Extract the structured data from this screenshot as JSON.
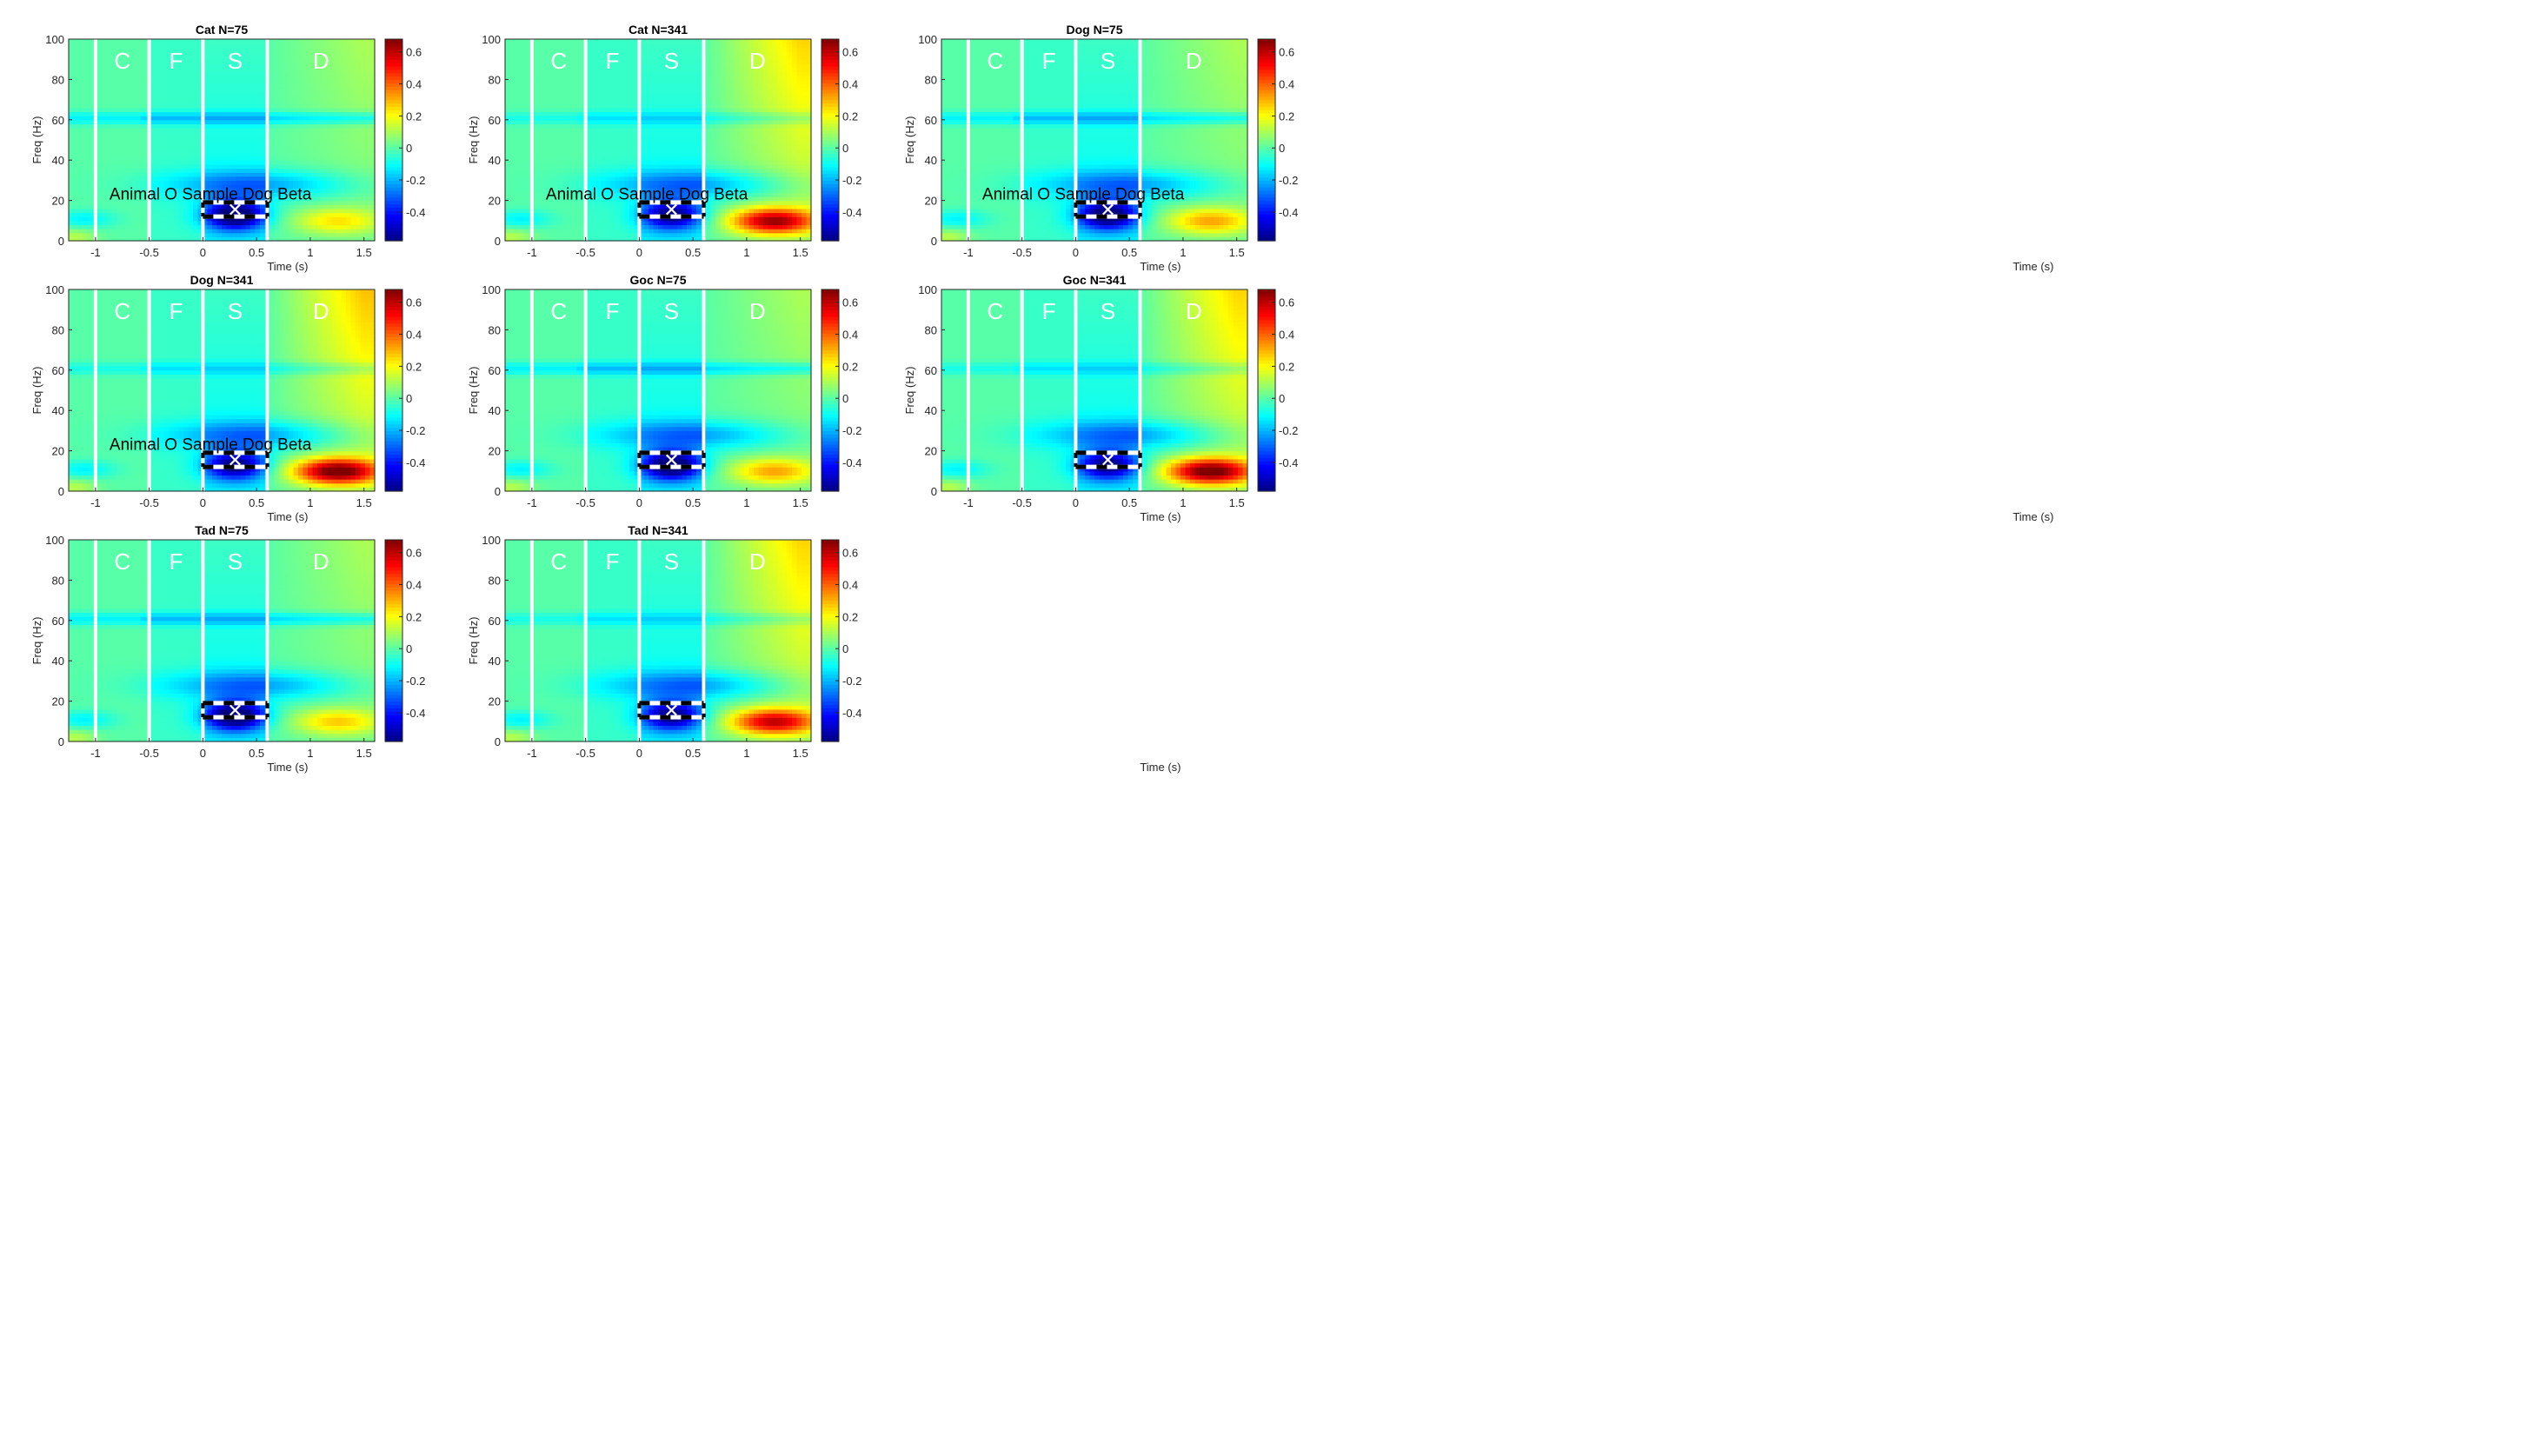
{
  "figure": {
    "xlabel": "Time (s)",
    "ylabel": "Freq (Hz)",
    "x_ticks": [
      -1,
      -0.5,
      0,
      0.5,
      1,
      1.5
    ],
    "y_ticks": [
      0,
      20,
      40,
      60,
      80,
      100
    ],
    "colorbar_ticks": [
      -0.4,
      -0.2,
      0,
      0.2,
      0.4,
      0.6
    ],
    "colorbar_range": [
      -0.58,
      0.68
    ],
    "xlim": [
      -1.25,
      1.6
    ],
    "ylim": [
      0,
      100
    ],
    "epoch_boundaries": [
      -1,
      -0.5,
      0,
      0.6
    ],
    "epoch_labels": [
      {
        "text": "C",
        "x": -0.75
      },
      {
        "text": "F",
        "x": -0.25
      },
      {
        "text": "S",
        "x": 0.3
      },
      {
        "text": "D",
        "x": 1.1
      }
    ],
    "roi": {
      "x_range": [
        0,
        0.6
      ],
      "y_range": [
        12,
        19
      ],
      "marker_x": 0.3,
      "marker_y": 15.5,
      "marker": "✕"
    },
    "annotation": "Animal O Sample Dog Beta"
  },
  "chart_data": [
    {
      "type": "heatmap",
      "title": "Cat N=75",
      "xlabel": "Time (s)",
      "ylabel": "Freq (Hz)",
      "xlim": [
        -1.25,
        1.6
      ],
      "ylim": [
        0,
        100
      ],
      "colormap": "jet",
      "annotation": "Animal O Sample Dog Beta",
      "features": {
        "line_noise_60hz": -0.15,
        "sample_beta_suppression": -0.6,
        "delay_alpha_burst": 0.22,
        "delay_drift": 0.08
      }
    },
    {
      "type": "heatmap",
      "title": "Cat N=341",
      "xlabel": "Time (s)",
      "ylabel": "Freq (Hz)",
      "xlim": [
        -1.25,
        1.6
      ],
      "ylim": [
        0,
        100
      ],
      "colormap": "jet",
      "annotation": "Animal O Sample Dog Beta",
      "features": {
        "line_noise_60hz": -0.1,
        "sample_beta_suppression": -0.5,
        "delay_alpha_burst": 0.6,
        "delay_drift": 0.2
      }
    },
    {
      "type": "heatmap",
      "title": "Dog N=75",
      "xlabel": "Time (s)",
      "ylabel": "Freq (Hz)",
      "xlim": [
        -1.25,
        1.6
      ],
      "ylim": [
        0,
        100
      ],
      "colormap": "jet",
      "annotation": "Animal O Sample Dog Beta",
      "features": {
        "line_noise_60hz": -0.15,
        "sample_beta_suppression": -0.58,
        "delay_alpha_burst": 0.3,
        "delay_drift": 0.08
      }
    },
    {
      "type": "heatmap",
      "title": "Dog N=341",
      "xlabel": "Time (s)",
      "ylabel": "Freq (Hz)",
      "xlim": [
        -1.25,
        1.6
      ],
      "ylim": [
        0,
        100
      ],
      "colormap": "jet",
      "annotation": "Animal O Sample Dog Beta",
      "features": {
        "line_noise_60hz": -0.1,
        "sample_beta_suppression": -0.5,
        "delay_alpha_burst": 0.68,
        "delay_drift": 0.22
      }
    },
    {
      "type": "heatmap",
      "title": "Goc N=75",
      "xlabel": "Time (s)",
      "ylabel": "Freq (Hz)",
      "xlim": [
        -1.25,
        1.6
      ],
      "ylim": [
        0,
        100
      ],
      "colormap": "jet",
      "annotation": "",
      "features": {
        "line_noise_60hz": -0.15,
        "sample_beta_suppression": -0.6,
        "delay_alpha_burst": 0.3,
        "delay_drift": 0.08
      }
    },
    {
      "type": "heatmap",
      "title": "Goc N=341",
      "xlabel": "Time (s)",
      "ylabel": "Freq (Hz)",
      "xlim": [
        -1.25,
        1.6
      ],
      "ylim": [
        0,
        100
      ],
      "colormap": "jet",
      "annotation": "",
      "features": {
        "line_noise_60hz": -0.1,
        "sample_beta_suppression": -0.5,
        "delay_alpha_burst": 0.68,
        "delay_drift": 0.2
      }
    },
    {
      "type": "heatmap",
      "title": "Tad N=75",
      "xlabel": "Time (s)",
      "ylabel": "Freq (Hz)",
      "xlim": [
        -1.25,
        1.6
      ],
      "ylim": [
        0,
        100
      ],
      "colormap": "jet",
      "annotation": "",
      "features": {
        "line_noise_60hz": -0.15,
        "sample_beta_suppression": -0.6,
        "delay_alpha_burst": 0.25,
        "delay_drift": 0.08
      }
    },
    {
      "type": "heatmap",
      "title": "Tad N=341",
      "xlabel": "Time (s)",
      "ylabel": "Freq (Hz)",
      "xlim": [
        -1.25,
        1.6
      ],
      "ylim": [
        0,
        100
      ],
      "colormap": "jet",
      "annotation": "",
      "features": {
        "line_noise_60hz": -0.1,
        "sample_beta_suppression": -0.5,
        "delay_alpha_burst": 0.55,
        "delay_drift": 0.2
      }
    }
  ]
}
